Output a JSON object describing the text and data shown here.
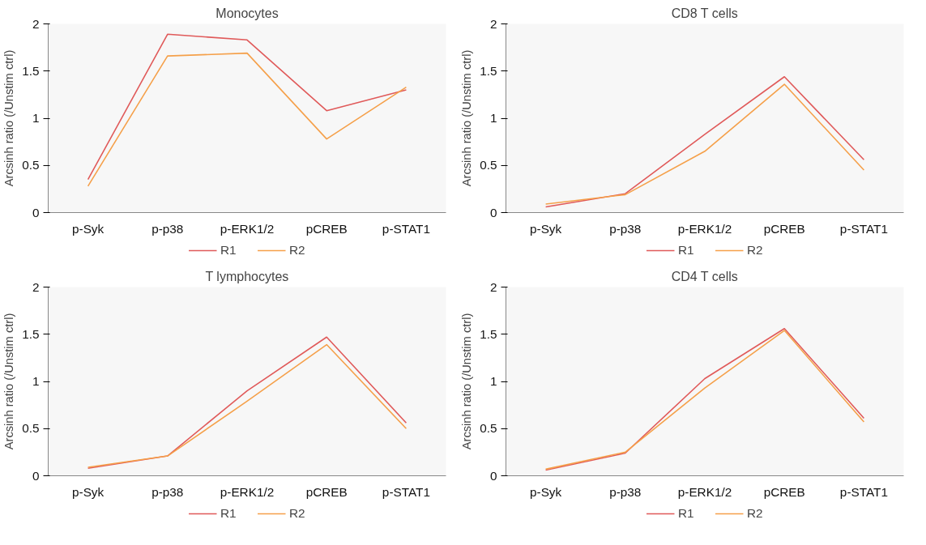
{
  "chart_data": [
    {
      "type": "line",
      "title": "Monocytes",
      "ylabel": "Arcsinh ratio (/Unstim ctrl)",
      "categories": [
        "p-Syk",
        "p-p38",
        "p-ERK1/2",
        "pCREB",
        "p-STAT1"
      ],
      "ylim": [
        0,
        2
      ],
      "yticks": [
        0,
        0.5,
        1,
        1.5,
        2
      ],
      "grid": false,
      "legend": "bottom",
      "marker": "none",
      "line_style": "solid",
      "series": [
        {
          "name": "R1",
          "color": "#e05a5a",
          "values": [
            0.35,
            1.89,
            1.83,
            1.08,
            1.3
          ]
        },
        {
          "name": "R2",
          "color": "#f5a04a",
          "values": [
            0.28,
            1.66,
            1.69,
            0.78,
            1.33
          ]
        }
      ]
    },
    {
      "type": "line",
      "title": "CD8 T cells",
      "ylabel": "Arcsinh ratio (/Unstim ctrl)",
      "categories": [
        "p-Syk",
        "p-p38",
        "p-ERK1/2",
        "pCREB",
        "p-STAT1"
      ],
      "ylim": [
        0,
        2
      ],
      "yticks": [
        0,
        0.5,
        1,
        1.5,
        2
      ],
      "grid": false,
      "legend": "bottom",
      "marker": "none",
      "line_style": "solid",
      "series": [
        {
          "name": "R1",
          "color": "#e05a5a",
          "values": [
            0.06,
            0.2,
            0.83,
            1.44,
            0.56
          ]
        },
        {
          "name": "R2",
          "color": "#f5a04a",
          "values": [
            0.09,
            0.19,
            0.65,
            1.36,
            0.45
          ]
        }
      ]
    },
    {
      "type": "line",
      "title": "T lymphocytes",
      "ylabel": "Arcsinh ratio (/Unstim ctrl)",
      "categories": [
        "p-Syk",
        "p-p38",
        "p-ERK1/2",
        "pCREB",
        "p-STAT1"
      ],
      "ylim": [
        0,
        2
      ],
      "yticks": [
        0,
        0.5,
        1,
        1.5,
        2
      ],
      "grid": false,
      "legend": "bottom",
      "marker": "none",
      "line_style": "solid",
      "series": [
        {
          "name": "R1",
          "color": "#e05a5a",
          "values": [
            0.08,
            0.21,
            0.9,
            1.47,
            0.56
          ]
        },
        {
          "name": "R2",
          "color": "#f5a04a",
          "values": [
            0.09,
            0.21,
            0.79,
            1.39,
            0.5
          ]
        }
      ]
    },
    {
      "type": "line",
      "title": "CD4 T cells",
      "ylabel": "Arcsinh ratio (/Unstim ctrl)",
      "categories": [
        "p-Syk",
        "p-p38",
        "p-ERK1/2",
        "pCREB",
        "p-STAT1"
      ],
      "ylim": [
        0,
        2
      ],
      "yticks": [
        0,
        0.5,
        1,
        1.5,
        2
      ],
      "grid": false,
      "legend": "bottom",
      "marker": "none",
      "line_style": "solid",
      "series": [
        {
          "name": "R1",
          "color": "#e05a5a",
          "values": [
            0.06,
            0.24,
            1.03,
            1.56,
            0.61
          ]
        },
        {
          "name": "R2",
          "color": "#f5a04a",
          "values": [
            0.07,
            0.25,
            0.93,
            1.54,
            0.57
          ]
        }
      ]
    }
  ]
}
